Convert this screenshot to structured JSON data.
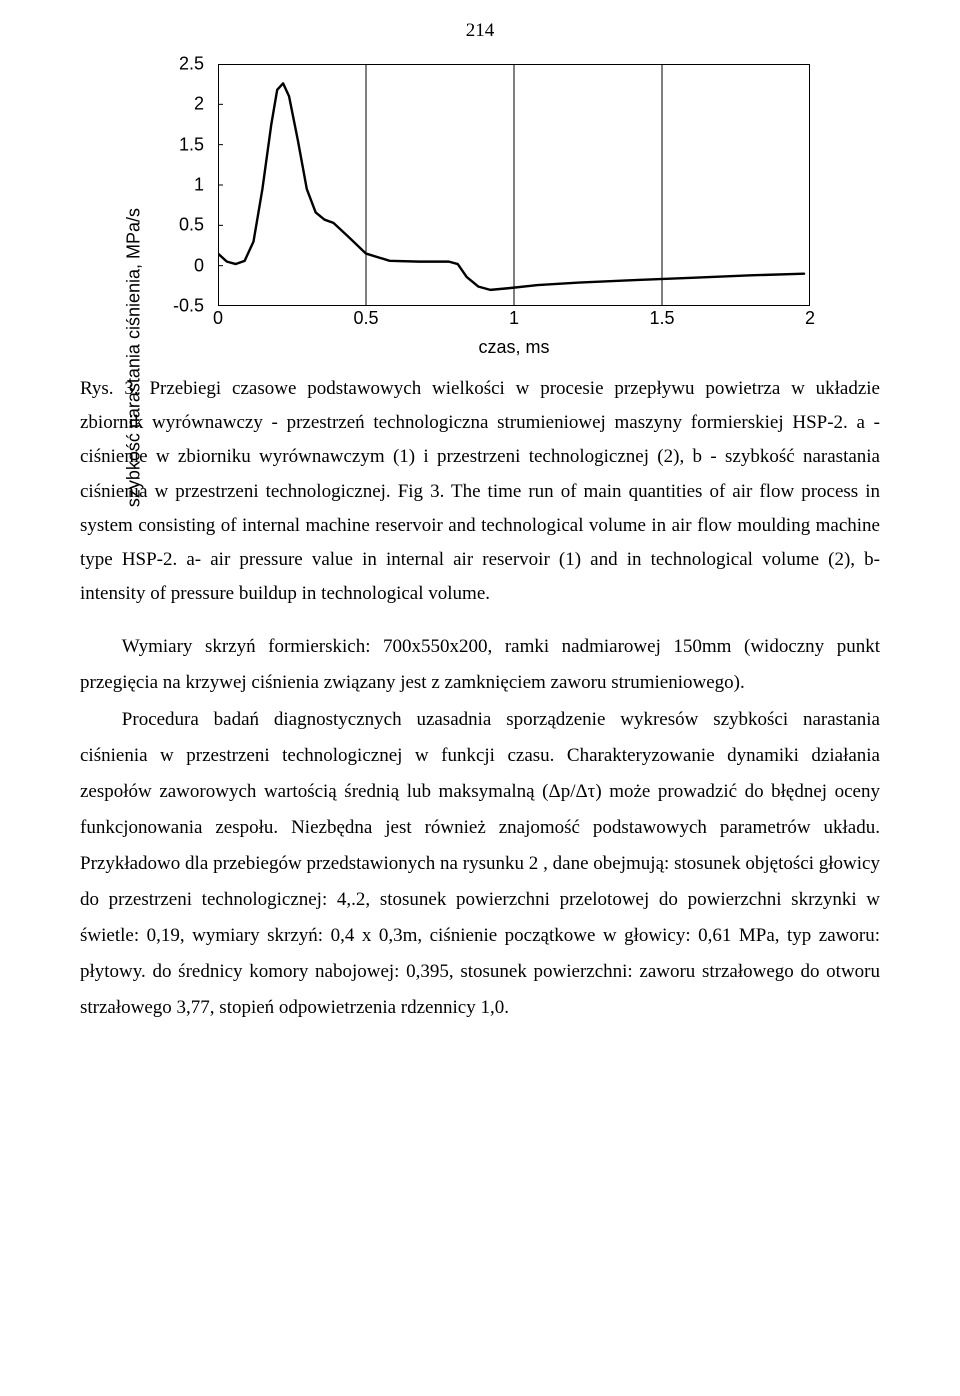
{
  "page_number": "214",
  "chart": {
    "type": "line",
    "ylabel": "szybkość narastania ciśnienia, MPa/s",
    "xlabel": "czas, ms",
    "xlim": [
      0,
      2
    ],
    "ylim": [
      -0.5,
      2.5
    ],
    "xticks": [
      0,
      0.5,
      1,
      1.5,
      2
    ],
    "xtick_labels": [
      "0",
      "0.5",
      "1",
      "1.5",
      "2"
    ],
    "yticks": [
      -0.5,
      0,
      0.5,
      1,
      1.5,
      2,
      2.5
    ],
    "ytick_labels": [
      "-0.5",
      "0",
      "0.5",
      "1",
      "1.5",
      "2",
      "2.5"
    ],
    "axis_fontsize": 18,
    "tick_fontsize": 18,
    "background_color": "#ffffff",
    "border_color": "#000000",
    "grid_color": "#000000",
    "grid_width": 1,
    "line_color": "#000000",
    "line_width": 2.4,
    "series": [
      [
        0.0,
        0.15
      ],
      [
        0.03,
        0.05
      ],
      [
        0.06,
        0.02
      ],
      [
        0.09,
        0.06
      ],
      [
        0.12,
        0.3
      ],
      [
        0.15,
        0.95
      ],
      [
        0.18,
        1.75
      ],
      [
        0.2,
        2.18
      ],
      [
        0.22,
        2.26
      ],
      [
        0.24,
        2.1
      ],
      [
        0.27,
        1.55
      ],
      [
        0.3,
        0.95
      ],
      [
        0.33,
        0.66
      ],
      [
        0.36,
        0.57
      ],
      [
        0.39,
        0.53
      ],
      [
        0.44,
        0.36
      ],
      [
        0.5,
        0.15
      ],
      [
        0.58,
        0.06
      ],
      [
        0.68,
        0.05
      ],
      [
        0.78,
        0.05
      ],
      [
        0.81,
        0.02
      ],
      [
        0.84,
        -0.14
      ],
      [
        0.88,
        -0.26
      ],
      [
        0.92,
        -0.3
      ],
      [
        0.98,
        -0.28
      ],
      [
        1.08,
        -0.24
      ],
      [
        1.22,
        -0.21
      ],
      [
        1.4,
        -0.18
      ],
      [
        1.6,
        -0.15
      ],
      [
        1.8,
        -0.12
      ],
      [
        1.98,
        -0.1
      ]
    ]
  },
  "caption": "Rys. 3. Przebiegi czasowe podstawowych wielkości w procesie przepływu powietrza w układzie zbiornik wyrównawczy - przestrzeń technologiczna strumieniowej maszyny formierskiej HSP-2.  a - ciśnienie w zbiorniku wyrównawczym (1) i przestrzeni technologicznej (2), b - szybkość narastania ciśnienia w przestrzeni technologicznej. Fig 3. The time run of main quantities of air flow process in system consisting of internal machine reservoir and technological volume in air flow moulding machine type HSP-2. a- air pressure value in internal air reservoir (1) and in technological volume (2), b- intensity of pressure buildup in technological volume.",
  "para1": "Wymiary skrzyń formierskich: 700x550x200, ramki nadmiarowej 150mm (widoczny punkt przegięcia na krzywej ciśnienia związany jest z zamknięciem zaworu strumieniowego).",
  "para2": "Procedura badań diagnostycznych uzasadnia sporządzenie wykresów szybkości narastania ciśnienia w przestrzeni technologicznej w funkcji czasu. Charakteryzowanie dynamiki działania zespołów zaworowych wartością średnią lub maksymalną (Δp/Δτ) może prowadzić do błędnej oceny funkcjonowania zespołu. Niezbędna jest również znajomość podstawowych parametrów układu. Przykładowo dla przebiegów przedstawionych na rysunku 2 , dane obejmują: stosunek objętości głowicy do przestrzeni technologicznej: 4,.2, stosunek powierzchni przelotowej do powierzchni skrzynki w świetle: 0,19, wymiary skrzyń: 0,4 x 0,3m, ciśnienie początkowe w głowicy: 0,61 MPa, typ zaworu: płytowy. do średnicy komory nabojowej: 0,395, stosunek powierzchni: zaworu strzałowego do otworu strzałowego 3,77, stopień odpowietrzenia rdzennicy 1,0."
}
